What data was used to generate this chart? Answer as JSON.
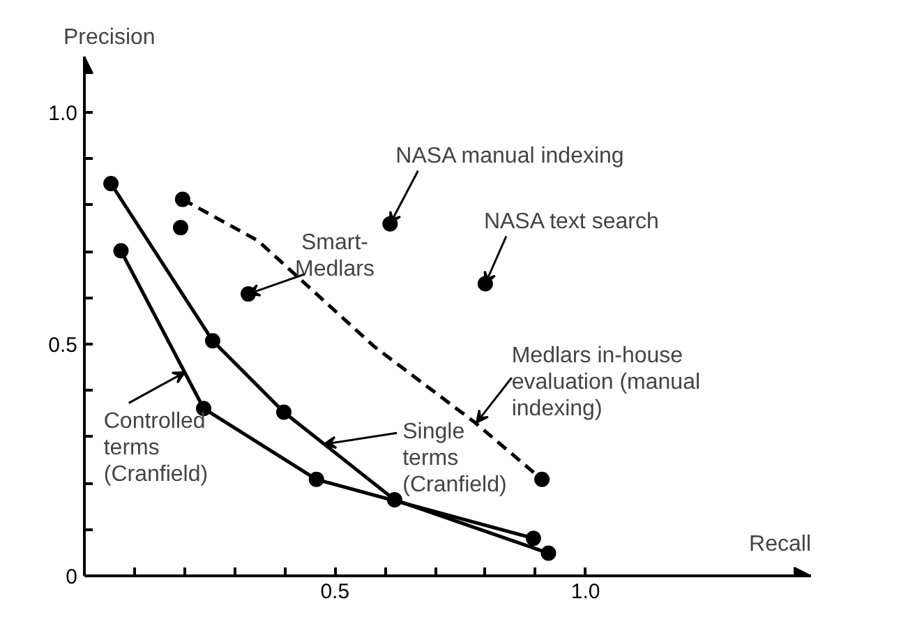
{
  "chart_data": {
    "type": "line",
    "xlabel": "Recall",
    "ylabel": "Precision",
    "xlim": [
      0,
      1.45
    ],
    "ylim": [
      0,
      1.12
    ],
    "xticks": [
      {
        "value": 0.1,
        "label": null
      },
      {
        "value": 0.2,
        "label": null
      },
      {
        "value": 0.3,
        "label": null
      },
      {
        "value": 0.4,
        "label": null
      },
      {
        "value": 0.5,
        "label": "0.5"
      },
      {
        "value": 0.6,
        "label": null
      },
      {
        "value": 0.7,
        "label": null
      },
      {
        "value": 0.8,
        "label": null
      },
      {
        "value": 0.9,
        "label": null
      },
      {
        "value": 1.0,
        "label": "1.0"
      }
    ],
    "yticks": [
      {
        "value": 0,
        "label": "0"
      },
      {
        "value": 0.1,
        "label": null
      },
      {
        "value": 0.2,
        "label": null
      },
      {
        "value": 0.3,
        "label": null
      },
      {
        "value": 0.4,
        "label": null
      },
      {
        "value": 0.5,
        "label": "0.5"
      },
      {
        "value": 0.6,
        "label": null
      },
      {
        "value": 0.7,
        "label": null
      },
      {
        "value": 0.8,
        "label": null
      },
      {
        "value": 0.9,
        "label": null
      },
      {
        "value": 1.0,
        "label": "1.0"
      }
    ],
    "series": [
      {
        "color": "#000000",
        "marker": "circle",
        "line_style": "solid",
        "x": [
          0.053,
          0.256,
          0.398,
          0.619,
          0.926
        ],
        "values": [
          0.846,
          0.507,
          0.353,
          0.164,
          0.049
        ]
      },
      {
        "color": "#000000",
        "marker": "circle",
        "line_style": "solid",
        "x": [
          0.073,
          0.238,
          0.463,
          0.896
        ],
        "values": [
          0.701,
          0.361,
          0.208,
          0.081
        ]
      },
      {
        "color": "#000000",
        "marker": "none",
        "line_style": "dashed",
        "x": [
          0.196,
          0.346,
          0.579,
          0.779,
          0.913
        ],
        "values": [
          0.812,
          0.723,
          0.494,
          0.331,
          0.208
        ]
      },
      {
        "type": "scatter",
        "color": "#000000",
        "marker": "circle",
        "x": [
          0.196,
          0.192,
          0.327,
          0.61,
          0.8,
          0.913
        ],
        "values": [
          0.812,
          0.751,
          0.608,
          0.759,
          0.63,
          0.208
        ]
      }
    ],
    "annotations": [
      {
        "text": "Smart-\nMedlars",
        "x": 0.327,
        "y": 0.608
      },
      {
        "text": "NASA manual indexing",
        "x": 0.61,
        "y": 0.759
      },
      {
        "text": "NASA text search",
        "x": 0.8,
        "y": 0.63
      },
      {
        "text": "Medlars in-house\nevaluation (manual\nindexing)",
        "x": 0.783,
        "y": 0.331
      },
      {
        "text": "Single\nterms\n(Cranfield)",
        "x": 0.479,
        "y": 0.284
      },
      {
        "text": "Controlled\nterms\n(Cranfield)",
        "x": 0.2,
        "y": 0.439
      }
    ]
  }
}
